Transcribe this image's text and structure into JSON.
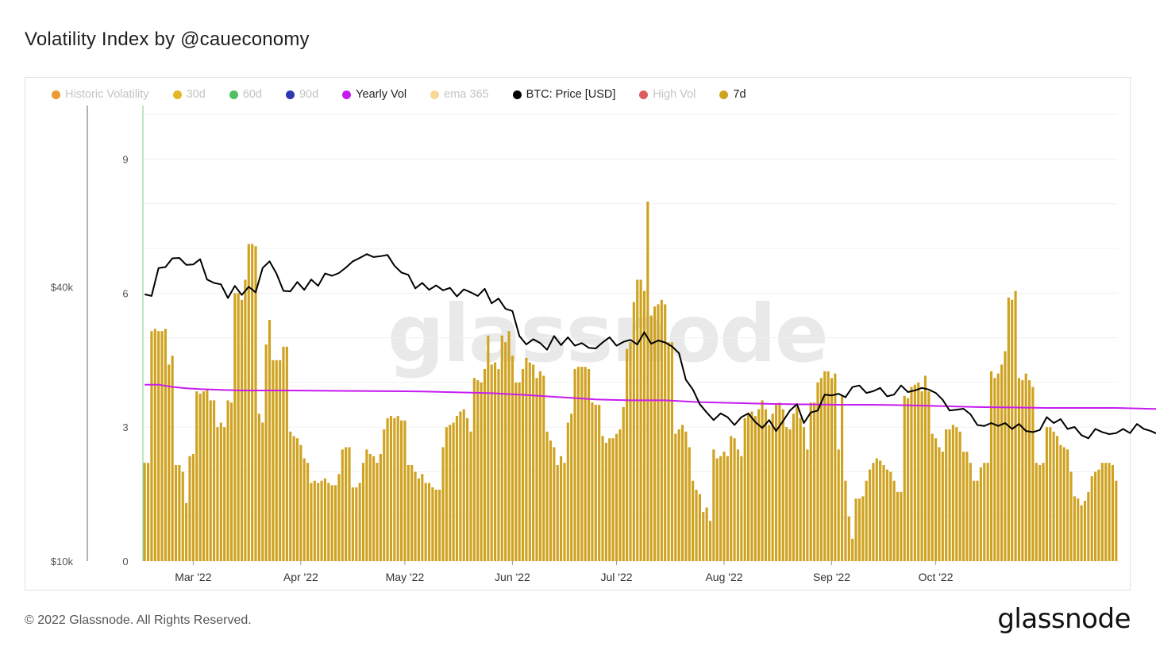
{
  "header": {
    "title": "Volatility Index by @caueconomy"
  },
  "footer": {
    "copyright": "© 2022 Glassnode. All Rights Reserved.",
    "brand": "glassnode"
  },
  "watermark": "glassnode",
  "legend": [
    {
      "label": "Historic Volatility",
      "color": "#e8901c",
      "active": false
    },
    {
      "label": "30d",
      "color": "#e3ac0f",
      "active": false
    },
    {
      "label": "60d",
      "color": "#3fb84f",
      "active": false
    },
    {
      "label": "90d",
      "color": "#1622a8",
      "active": false
    },
    {
      "label": "Yearly Vol",
      "color": "#c71cf0",
      "active": true
    },
    {
      "label": "ema 365",
      "color": "#f5d48c",
      "active": false
    },
    {
      "label": "BTC: Price [USD]",
      "color": "#000000",
      "active": true
    },
    {
      "label": "High Vol",
      "color": "#d94a4a",
      "active": false
    },
    {
      "label": "7d",
      "color": "#cfa21f",
      "active": true
    }
  ],
  "chart_data": {
    "type": "bar",
    "x_ticks": [
      "Mar '22",
      "Apr '22",
      "May '22",
      "Jun '22",
      "Jul '22",
      "Aug '22",
      "Sep '22",
      "Oct '22"
    ],
    "y_left_ticks": [
      "$40k",
      "$10k"
    ],
    "y_right_ticks": [
      "9",
      "6",
      "3",
      "0"
    ],
    "ylim_right": [
      0,
      10.2
    ],
    "ylim_left_log": [
      10000,
      100000
    ],
    "series": [
      {
        "name": "7d",
        "type": "bar",
        "color": "#cfa21f",
        "values": [
          2.2,
          2.2,
          5.15,
          5.2,
          5.15,
          5.15,
          5.2,
          4.4,
          4.6,
          2.15,
          2.15,
          2.0,
          1.3,
          2.35,
          2.4,
          3.8,
          3.75,
          3.8,
          3.85,
          3.6,
          3.6,
          3.0,
          3.1,
          3.0,
          3.6,
          3.55,
          6.0,
          6.0,
          5.85,
          6.3,
          7.1,
          7.1,
          7.05,
          3.3,
          3.1,
          4.85,
          5.4,
          4.5,
          4.5,
          4.5,
          4.8,
          4.8,
          2.9,
          2.8,
          2.75,
          2.6,
          2.3,
          2.2,
          1.75,
          1.8,
          1.75,
          1.8,
          1.85,
          1.75,
          1.7,
          1.7,
          1.95,
          2.5,
          2.55,
          2.55,
          1.65,
          1.65,
          1.75,
          2.2,
          2.5,
          2.4,
          2.35,
          2.2,
          2.4,
          2.95,
          3.2,
          3.25,
          3.2,
          3.25,
          3.15,
          3.15,
          2.15,
          2.15,
          2.0,
          1.85,
          1.95,
          1.75,
          1.75,
          1.65,
          1.6,
          1.6,
          2.55,
          3.0,
          3.05,
          3.1,
          3.25,
          3.35,
          3.4,
          3.2,
          2.9,
          4.1,
          4.05,
          4.0,
          4.3,
          5.05,
          4.4,
          4.45,
          4.3,
          5.05,
          4.9,
          5.15,
          4.6,
          4.0,
          4.0,
          4.3,
          4.55,
          4.45,
          4.4,
          4.1,
          4.25,
          4.15,
          2.9,
          2.7,
          2.55,
          2.15,
          2.35,
          2.2,
          3.1,
          3.3,
          4.3,
          4.35,
          4.35,
          4.35,
          4.3,
          3.55,
          3.5,
          3.5,
          2.8,
          2.65,
          2.75,
          2.75,
          2.85,
          2.95,
          3.45,
          4.75,
          4.9,
          5.8,
          6.3,
          6.3,
          6.05,
          8.05,
          5.5,
          5.7,
          5.75,
          5.85,
          5.75,
          4.9,
          4.9,
          2.85,
          2.95,
          3.05,
          2.9,
          2.55,
          1.8,
          1.6,
          1.5,
          1.1,
          1.2,
          0.9,
          2.5,
          2.3,
          2.35,
          2.45,
          2.35,
          2.8,
          2.75,
          2.5,
          2.35,
          3.2,
          3.3,
          3.35,
          3.25,
          3.4,
          3.6,
          3.4,
          3.05,
          3.3,
          3.5,
          3.55,
          3.4,
          3.0,
          2.95,
          3.3,
          3.45,
          3.2,
          3.0,
          2.5,
          3.55,
          3.55,
          4.0,
          4.1,
          4.25,
          4.25,
          4.1,
          4.2,
          2.5,
          3.7,
          1.8,
          1.0,
          0.5,
          1.4,
          1.4,
          1.45,
          1.8,
          2.05,
          2.2,
          2.3,
          2.25,
          2.15,
          2.05,
          2.0,
          1.8,
          1.55,
          1.55,
          3.7,
          3.65,
          3.9,
          3.95,
          4.0,
          3.8,
          4.15,
          3.8,
          2.85,
          2.75,
          2.55,
          2.45,
          2.95,
          2.95,
          3.05,
          3.0,
          2.9,
          2.45,
          2.45,
          2.2,
          1.8,
          1.8,
          2.1,
          2.2,
          2.2,
          4.25,
          4.1,
          4.2,
          4.4,
          4.7,
          5.9,
          5.85,
          6.05,
          4.1,
          4.05,
          4.2,
          4.05,
          3.9,
          2.2,
          2.15,
          2.2,
          3.0,
          3.0,
          2.9,
          2.8,
          2.6,
          2.55,
          2.5,
          2.0,
          1.45,
          1.4,
          1.25,
          1.35,
          1.55,
          1.9,
          2.0,
          2.05,
          2.2,
          2.2,
          2.2,
          2.15,
          1.8
        ]
      },
      {
        "name": "Yearly Vol",
        "type": "line",
        "color": "#c71cf0",
        "x_index": [
          0,
          4,
          8,
          12,
          16,
          20,
          24,
          28,
          40,
          60,
          80,
          100,
          110,
          120,
          130,
          140,
          150,
          160,
          170,
          180,
          190,
          200,
          210,
          220,
          230,
          240,
          250,
          260,
          270,
          280,
          290,
          300,
          310,
          320
        ],
        "values": [
          3.95,
          3.95,
          3.9,
          3.87,
          3.85,
          3.84,
          3.83,
          3.82,
          3.82,
          3.81,
          3.8,
          3.76,
          3.72,
          3.67,
          3.62,
          3.6,
          3.6,
          3.56,
          3.54,
          3.52,
          3.51,
          3.5,
          3.5,
          3.49,
          3.47,
          3.45,
          3.44,
          3.43,
          3.43,
          3.43,
          3.41,
          3.39,
          3.36,
          3.34
        ]
      },
      {
        "name": "BTC: Price [USD]",
        "type": "line",
        "color": "#000000",
        "x_index": [
          0,
          2,
          4,
          6,
          8,
          10,
          12,
          14,
          16,
          18,
          20,
          22,
          24,
          26,
          28,
          30,
          32,
          34,
          36,
          38,
          40,
          42,
          44,
          46,
          48,
          50,
          52,
          54,
          56,
          58,
          60,
          62,
          64,
          66,
          68,
          70,
          72,
          74,
          76,
          78,
          80,
          82,
          84,
          86,
          88,
          90,
          92,
          94,
          96,
          98,
          100,
          102,
          104,
          106,
          108,
          110,
          112,
          114,
          116,
          118,
          120,
          122,
          124,
          126,
          128,
          130,
          132,
          134,
          136,
          138,
          140,
          142,
          144,
          146,
          148,
          150,
          152,
          154,
          156,
          158,
          160,
          162,
          164,
          166,
          168,
          170,
          172,
          174,
          176,
          178,
          180,
          182,
          184,
          186,
          188,
          190,
          192,
          194,
          196,
          198,
          200,
          202,
          204,
          206,
          208,
          210,
          212,
          214,
          216,
          218,
          220,
          222,
          224,
          226,
          228,
          230,
          232,
          234,
          236,
          238,
          240,
          242,
          244,
          246,
          248,
          250,
          252,
          254,
          256,
          258,
          260,
          262,
          264,
          266,
          268,
          270,
          272,
          274,
          276,
          278,
          280,
          282,
          284,
          286,
          288,
          290,
          292,
          294,
          296,
          298,
          300,
          302,
          304,
          306,
          308,
          310,
          312,
          314,
          316,
          318,
          320
        ],
        "values": [
          38500,
          38200,
          44000,
          44200,
          46200,
          46300,
          44700,
          44800,
          46000,
          41500,
          40800,
          40500,
          37800,
          40200,
          38400,
          40000,
          38900,
          44000,
          45500,
          42800,
          39200,
          39100,
          41000,
          39400,
          41500,
          40200,
          42800,
          42300,
          42900,
          44100,
          45500,
          46300,
          47200,
          46500,
          46700,
          47000,
          44500,
          43000,
          42500,
          39700,
          40800,
          39400,
          40300,
          39300,
          39800,
          38100,
          39500,
          38900,
          38200,
          39600,
          36800,
          37700,
          35800,
          35400,
          31200,
          29900,
          30700,
          30100,
          29100,
          31200,
          29800,
          31000,
          29700,
          30100,
          29400,
          29300,
          30200,
          31000,
          29700,
          30300,
          30600,
          29900,
          31800,
          30000,
          30500,
          30200,
          29600,
          28600,
          25000,
          23800,
          22100,
          21200,
          20400,
          21100,
          20700,
          19900,
          20700,
          21100,
          20200,
          19600,
          20400,
          19300,
          20300,
          21400,
          22100,
          20100,
          21200,
          21400,
          23200,
          23100,
          23300,
          22900,
          24100,
          24300,
          23400,
          23600,
          24000,
          23000,
          23200,
          24300,
          23500,
          23700,
          24000,
          23800,
          23400,
          22600,
          21400,
          21500,
          21600,
          21000,
          19900,
          19800,
          20100,
          19800,
          20100,
          19500,
          20000,
          19300,
          19200,
          19400,
          20700,
          20100,
          20500,
          19500,
          19700,
          18900,
          18600,
          19500,
          19200,
          19000,
          19100,
          19500,
          19100,
          20000,
          19500,
          19300,
          19000,
          19600,
          19200,
          19300,
          19100,
          19200,
          19000,
          19100,
          19200,
          19200,
          19300,
          19000,
          19100,
          19200,
          19150
        ]
      }
    ],
    "grid": true
  }
}
